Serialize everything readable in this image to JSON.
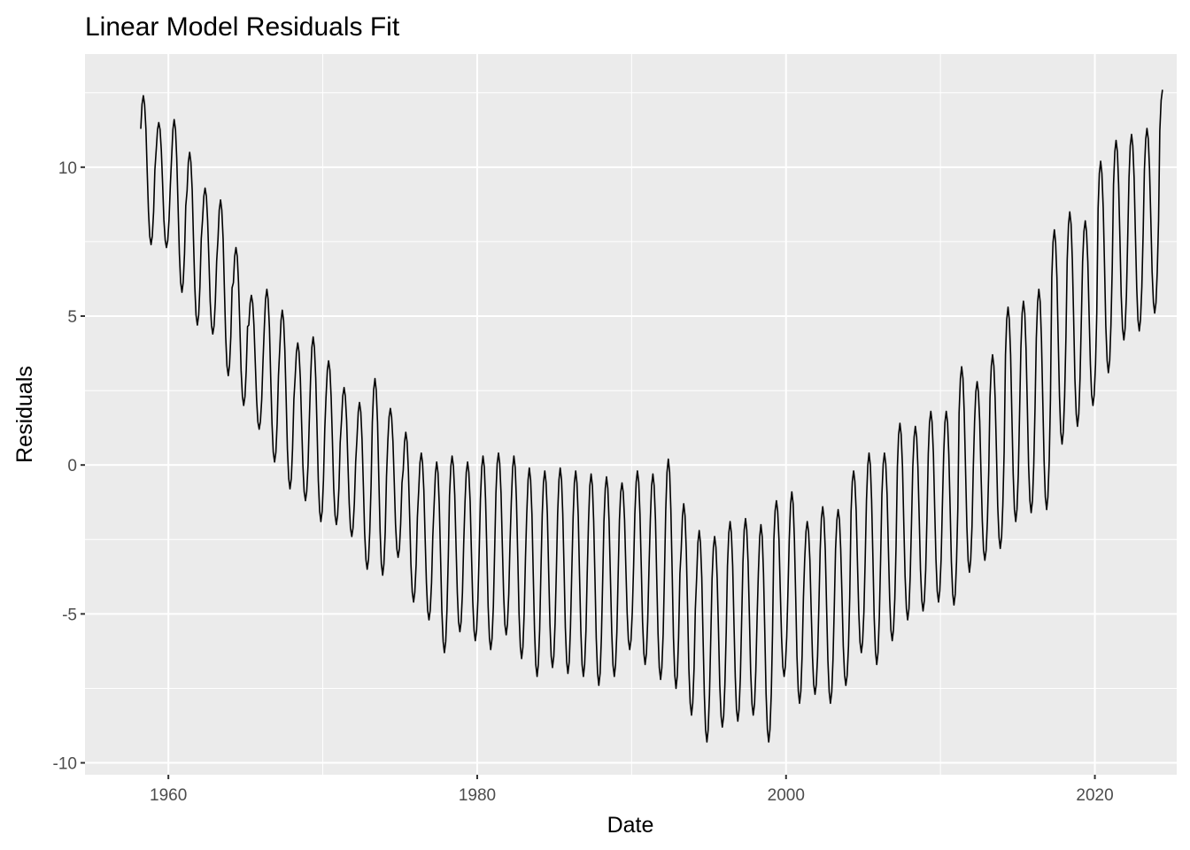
{
  "chart_data": {
    "type": "line",
    "title": "Linear Model Residuals Fit",
    "xlabel": "Date",
    "ylabel": "Residuals",
    "x_ticks": [
      1960,
      1980,
      2000,
      2020
    ],
    "x_tick_labels": [
      "1960",
      "1980",
      "2000",
      "2020"
    ],
    "y_ticks": [
      10,
      5,
      0,
      -5,
      -10
    ],
    "y_tick_labels": [
      "10",
      "5",
      "0",
      "-5",
      "-10"
    ],
    "xlim": [
      1954.6,
      2025.3
    ],
    "ylim": [
      -10.4,
      13.8
    ],
    "grid": true,
    "legend": "none",
    "colors": {
      "panel": "#ebebeb",
      "grid": "#ffffff",
      "line": "#000000",
      "tick": "#333333"
    },
    "series": [
      {
        "x_start": 1958.21,
        "x_step": 0.08333,
        "annual_peaks": [
          12.4,
          11.5,
          11.6,
          10.5,
          9.3,
          8.9,
          7.3,
          5.7,
          5.9,
          5.2,
          4.1,
          4.3,
          3.5,
          2.6,
          2.1,
          2.9,
          1.9,
          1.1,
          0.4,
          0.1,
          0.3,
          0.1,
          0.3,
          0.4,
          0.3,
          -0.1,
          -0.2,
          -0.1,
          -0.2,
          -0.3,
          -0.4,
          -0.6,
          -0.2,
          -0.3,
          0.2,
          -1.3,
          -2.2,
          -2.4,
          -1.9,
          -1.8,
          -2.0,
          -1.2,
          -0.9,
          -1.9,
          -1.4,
          -1.5,
          -0.2,
          0.4,
          0.4,
          1.4,
          1.3,
          1.8,
          1.8,
          3.3,
          2.8,
          3.7,
          5.3,
          5.5,
          5.9,
          7.9,
          8.5,
          8.2,
          10.2,
          10.9,
          11.1,
          11.3,
          12.6,
          12.0
        ],
        "annual_troughs": [
          7.4,
          7.3,
          5.8,
          4.7,
          4.4,
          3.0,
          2.0,
          1.2,
          0.1,
          -0.8,
          -1.2,
          -1.9,
          -2.0,
          -2.4,
          -3.5,
          -3.7,
          -3.1,
          -4.6,
          -5.2,
          -6.3,
          -5.6,
          -5.9,
          -6.2,
          -5.7,
          -6.5,
          -7.1,
          -6.8,
          -7.0,
          -7.1,
          -7.4,
          -7.1,
          -6.2,
          -6.7,
          -7.2,
          -7.5,
          -8.4,
          -9.3,
          -8.8,
          -8.6,
          -8.4,
          -9.3,
          -7.1,
          -8.0,
          -7.7,
          -8.0,
          -7.4,
          -6.3,
          -6.7,
          -5.9,
          -5.2,
          -4.9,
          -4.6,
          -4.7,
          -3.6,
          -3.2,
          -2.8,
          -1.9,
          -1.6,
          -1.5,
          0.7,
          1.3,
          2.0,
          3.1,
          4.2,
          4.5,
          5.1,
          6.4,
          7.5
        ]
      }
    ]
  }
}
